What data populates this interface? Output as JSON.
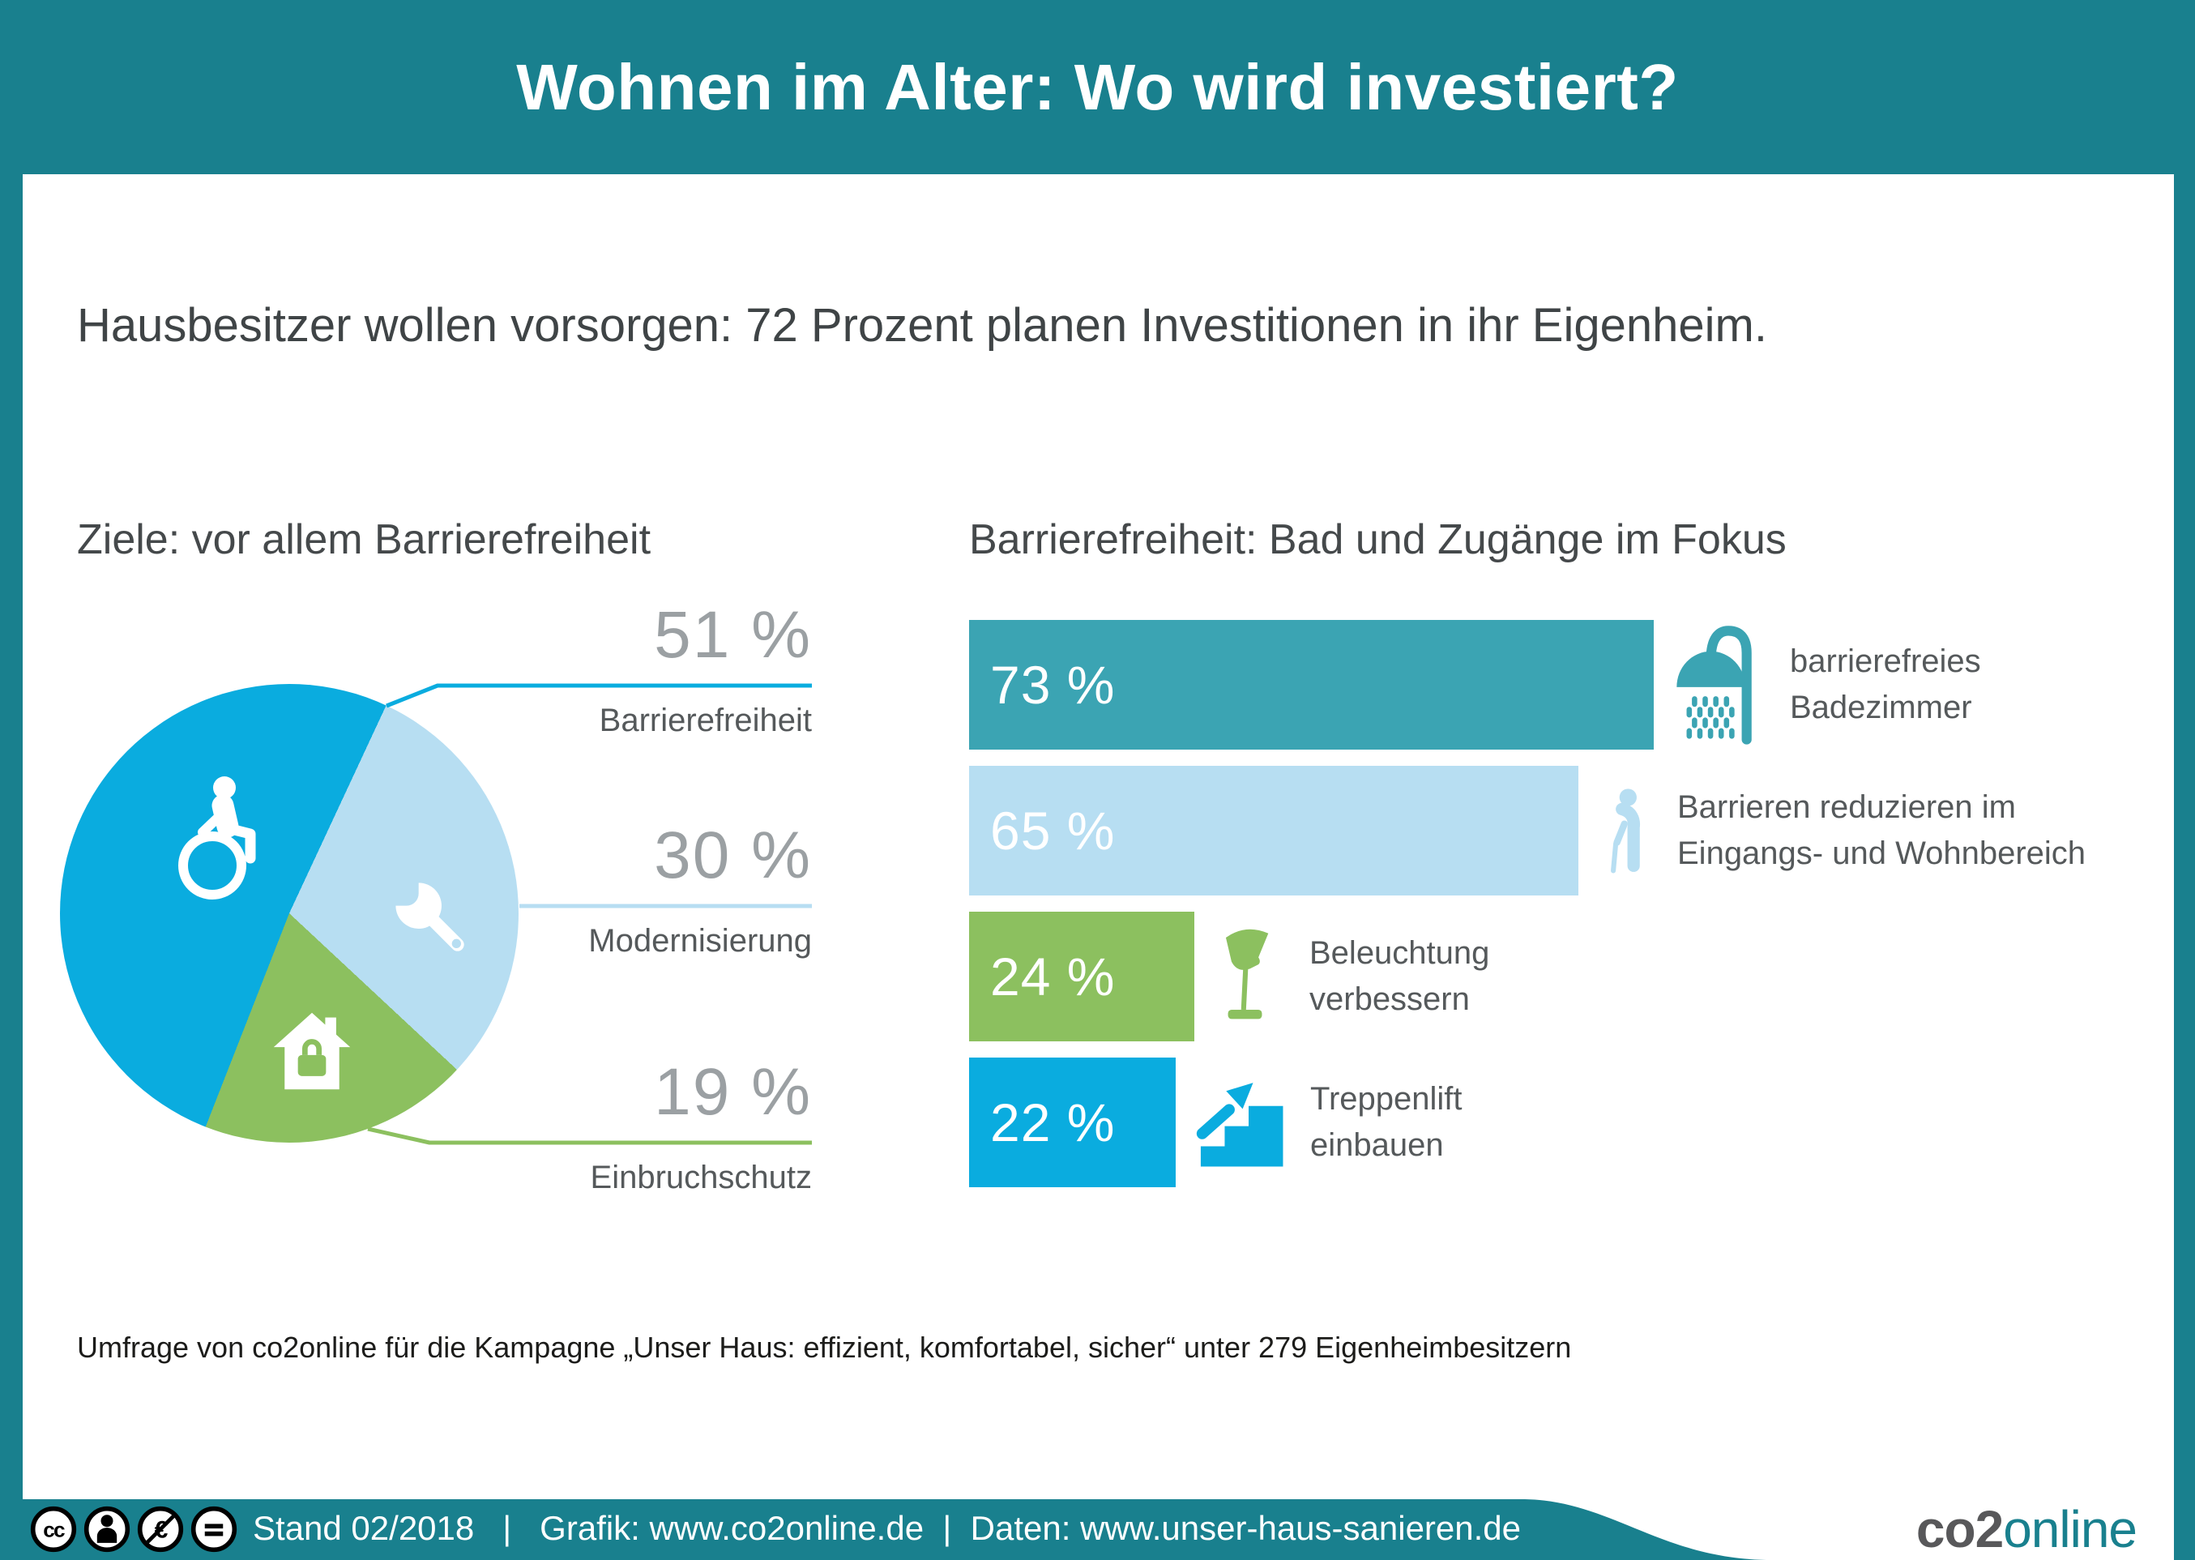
{
  "header": {
    "title": "Wohnen im Alter: Wo wird investiert?"
  },
  "subtitle": "Hausbesitzer wollen vorsorgen: 72 Prozent planen Investitionen in ihr Eigenheim.",
  "colors": {
    "teal": "#19808e",
    "bar_teal": "#3ba4b3",
    "blue": "#0aacdf",
    "light_blue": "#b7def2",
    "green": "#8cc05f",
    "value_gray": "#9ba0a3",
    "label_gray": "#55595b",
    "white": "#ffffff"
  },
  "chart_data": [
    {
      "type": "pie",
      "title": "Ziele: vor allem Barrierefreiheit",
      "value_suffix": " %",
      "gradient_from_deg": 201.4,
      "slices": [
        {
          "label": "Barrierefreiheit",
          "value": 51,
          "value_label": "51 %",
          "color": "#0aacdf",
          "icon": "wheelchair-icon"
        },
        {
          "label": "Modernisierung",
          "value": 30,
          "value_label": "30 %",
          "color": "#b7def2",
          "icon": "wrench-icon"
        },
        {
          "label": "Einbruchschutz",
          "value": 19,
          "value_label": "19 %",
          "color": "#8cc05f",
          "icon": "house-lock-icon"
        }
      ]
    },
    {
      "type": "bar",
      "orientation": "horizontal",
      "title": "Barrierefreiheit: Bad und Zugänge im Fokus",
      "xlim": [
        0,
        100
      ],
      "bars": [
        {
          "value": 73,
          "value_label": "73 %",
          "color": "#3ba4b3",
          "icon": "shower-icon",
          "label": "barrierefreies Badezimmer",
          "label_lines": [
            "barrierefreies",
            "Badezimmer"
          ]
        },
        {
          "value": 65,
          "value_label": "65 %",
          "color": "#b7def2",
          "icon": "person-cane-icon",
          "label": "Barrieren reduzieren im Eingangs- und Wohnbereich",
          "label_lines": [
            "Barrieren reduzieren im",
            "Eingangs- und Wohnbereich"
          ]
        },
        {
          "value": 24,
          "value_label": "24 %",
          "color": "#8cc05f",
          "icon": "lamp-icon",
          "label": "Beleuchtung verbessern",
          "label_lines": [
            "Beleuchtung",
            "verbessern"
          ]
        },
        {
          "value": 22,
          "value_label": "22 %",
          "color": "#0aacdf",
          "icon": "stairs-lift-icon",
          "label": "Treppenlift einbauen",
          "label_lines": [
            "Treppenlift",
            "einbauen"
          ]
        }
      ]
    }
  ],
  "footnote": "Umfrage von co2online für die Kampagne „Unser Haus: effizient, komfortabel, sicher“ unter 279 Eigenheimbesitzern",
  "footer": {
    "license_icons": [
      "cc",
      "by",
      "nc",
      "nd"
    ],
    "line": "Stand 02/2018   |   Grafik: www.co2online.de  |  Daten: www.unser-haus-sanieren.de",
    "logo_co2": "co2",
    "logo_online": "online"
  }
}
